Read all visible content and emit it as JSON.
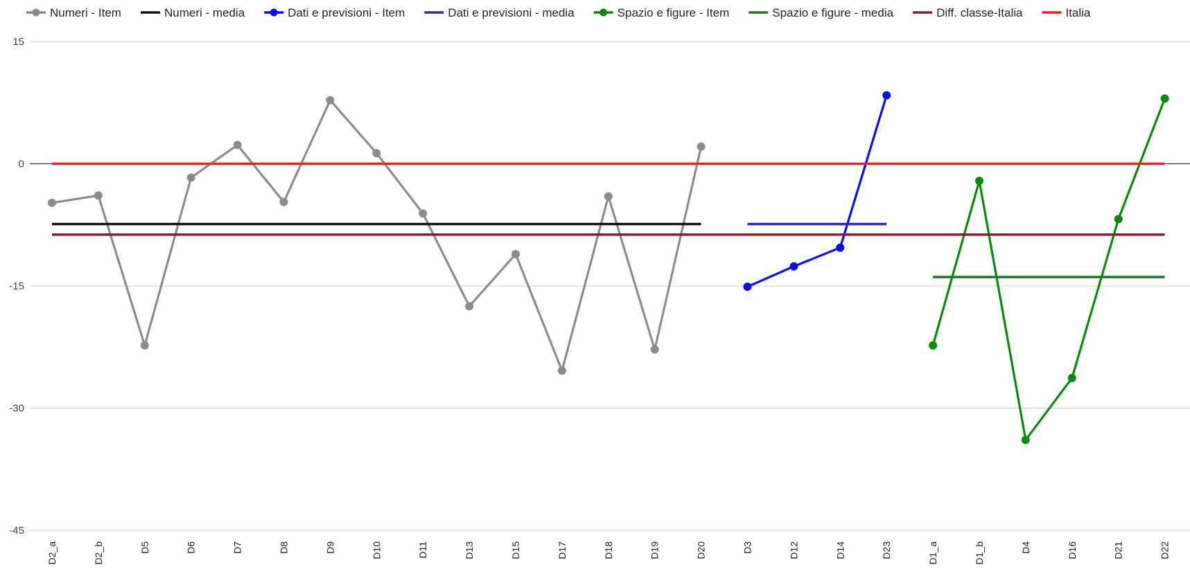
{
  "chart_data": {
    "type": "line",
    "title": "",
    "xlabel": "",
    "ylabel": "",
    "ylim": [
      -45,
      15
    ],
    "yticks": [
      15,
      0,
      -15,
      -30,
      -45
    ],
    "grid": true,
    "legend_position": "top",
    "categories": [
      "D2_a",
      "D2_b",
      "D5",
      "D6",
      "D7",
      "D8",
      "D9",
      "D10",
      "D11",
      "D13",
      "D15",
      "D17",
      "D18",
      "D19",
      "D20",
      "D3",
      "D12",
      "D14",
      "D23",
      "D1_a",
      "D1_b",
      "D4",
      "D16",
      "D21",
      "D22"
    ],
    "series": [
      {
        "name": "Numeri - Item",
        "color": "#8c8c8c",
        "style": "line-markers",
        "values": [
          -4.8,
          -3.9,
          -22.3,
          -1.7,
          2.3,
          -4.7,
          7.8,
          1.3,
          -6.1,
          -17.5,
          -11.1,
          -25.4,
          -4,
          -22.8,
          2.1,
          null,
          null,
          null,
          null,
          null,
          null,
          null,
          null,
          null,
          null
        ]
      },
      {
        "name": "Numeri - media",
        "color": "#111111",
        "style": "line",
        "values": [
          -7.4,
          -7.4,
          -7.4,
          -7.4,
          -7.4,
          -7.4,
          -7.4,
          -7.4,
          -7.4,
          -7.4,
          -7.4,
          -7.4,
          -7.4,
          -7.4,
          -7.4,
          null,
          null,
          null,
          null,
          null,
          null,
          null,
          null,
          null,
          null
        ]
      },
      {
        "name": "Dati e previsioni - Item",
        "color": "#0a0aff",
        "style": "line-markers",
        "values": [
          null,
          null,
          null,
          null,
          null,
          null,
          null,
          null,
          null,
          null,
          null,
          null,
          null,
          null,
          null,
          -15.1,
          -12.6,
          -10.3,
          8.4,
          null,
          null,
          null,
          null,
          null,
          null
        ]
      },
      {
        "name": "Dati e previsioni - media",
        "color": "#2a2ab8",
        "style": "line",
        "values": [
          null,
          null,
          null,
          null,
          null,
          null,
          null,
          null,
          null,
          null,
          null,
          null,
          null,
          null,
          null,
          -7.4,
          -7.4,
          -7.4,
          -7.4,
          null,
          null,
          null,
          null,
          null,
          null
        ]
      },
      {
        "name": "Spazio e figure - Item",
        "color": "#0a8a0a",
        "style": "line-markers",
        "values": [
          null,
          null,
          null,
          null,
          null,
          null,
          null,
          null,
          null,
          null,
          null,
          null,
          null,
          null,
          null,
          null,
          null,
          null,
          null,
          -22.3,
          -2.1,
          -33.9,
          -26.3,
          -6.8,
          8
        ]
      },
      {
        "name": "Spazio e figure - media",
        "color": "#1e7a1e",
        "style": "line",
        "values": [
          null,
          null,
          null,
          null,
          null,
          null,
          null,
          null,
          null,
          null,
          null,
          null,
          null,
          null,
          null,
          null,
          null,
          null,
          null,
          -13.9,
          -13.9,
          -13.9,
          -13.9,
          -13.9,
          -13.9
        ]
      },
      {
        "name": "Diff. classe-Italia",
        "color": "#8b1a2b",
        "style": "line",
        "values": [
          -8.7,
          -8.7,
          -8.7,
          -8.7,
          -8.7,
          -8.7,
          -8.7,
          -8.7,
          -8.7,
          -8.7,
          -8.7,
          -8.7,
          -8.7,
          -8.7,
          -8.7,
          -8.7,
          -8.7,
          -8.7,
          -8.7,
          -8.7,
          -8.7,
          -8.7,
          -8.7,
          -8.7,
          -8.7
        ]
      },
      {
        "name": "Italia",
        "color": "#ff1a1a",
        "style": "line",
        "values": [
          0,
          0,
          0,
          0,
          0,
          0,
          0,
          0,
          0,
          0,
          0,
          0,
          0,
          0,
          0,
          0,
          0,
          0,
          0,
          0,
          0,
          0,
          0,
          0,
          0
        ]
      }
    ]
  }
}
